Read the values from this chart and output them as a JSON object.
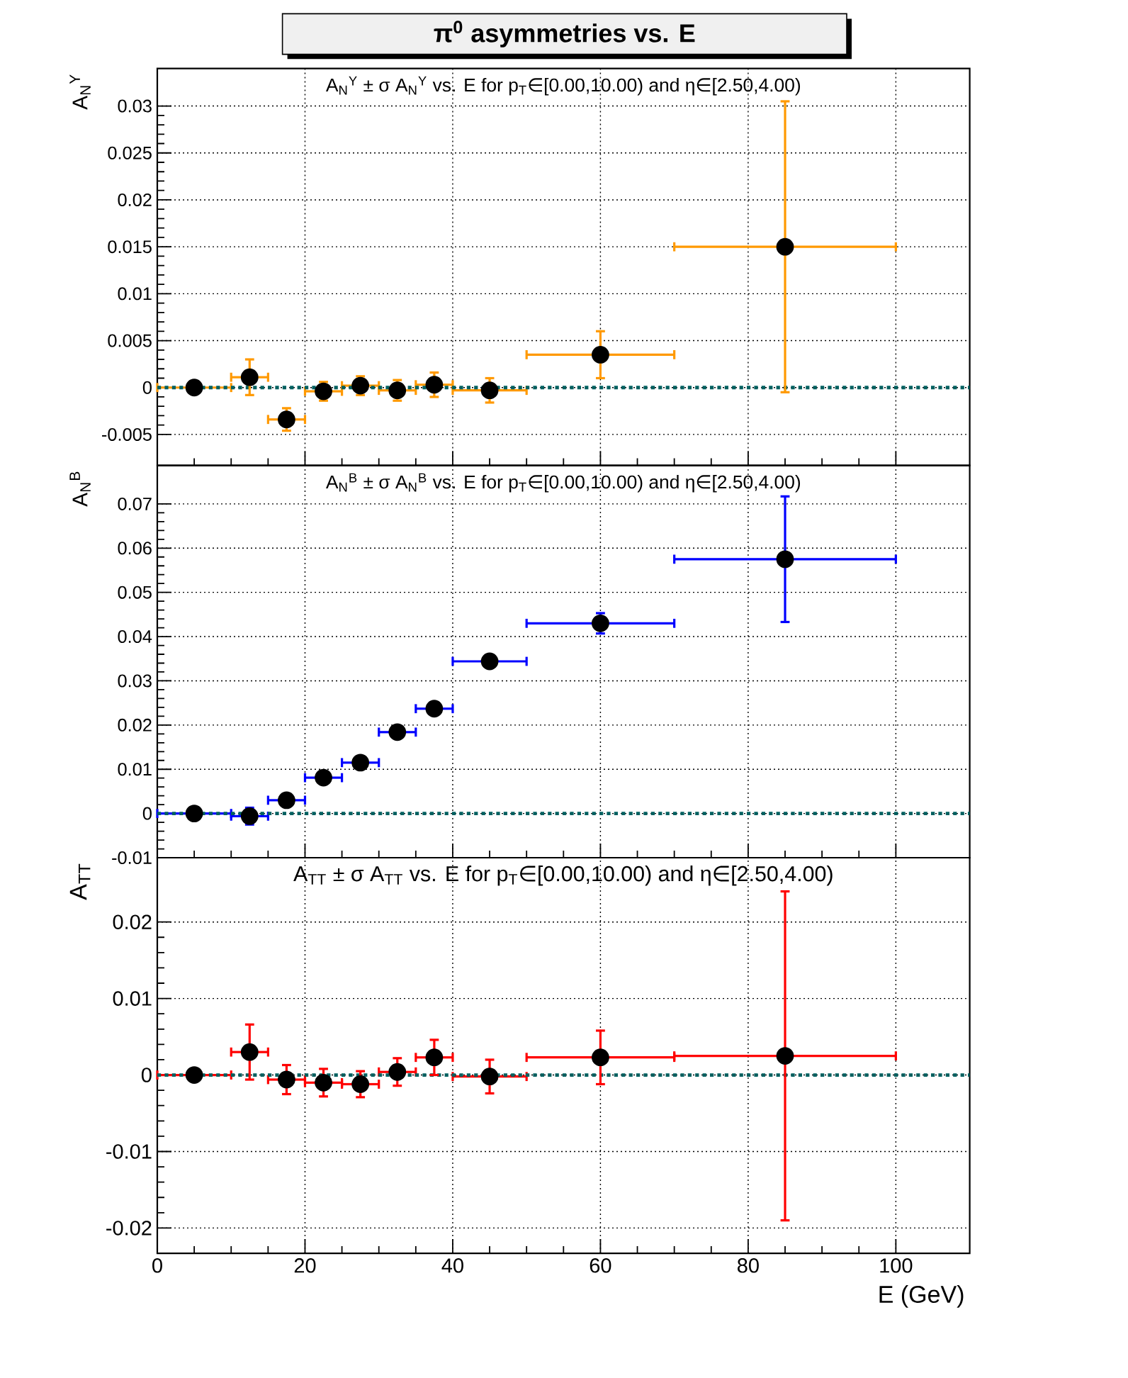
{
  "chart_data": [
    {
      "type": "scatter",
      "title": "π$^{0}$ asymmetries vs. E",
      "subtitle": "A$_{N}$$^{Y}$ ± σ A$_{N}$$^{Y}$ vs. E for p$_{T}$∈[0.00,10.00) and η∈[2.50,4.00)",
      "ylabel": "A$_{N}$$^{Y}$",
      "x": [
        5,
        12.5,
        17.5,
        22.5,
        27.5,
        32.5,
        37.5,
        45,
        60,
        85
      ],
      "series": [
        {
          "color": "#000000",
          "values": [
            0,
            0.0011,
            -0.0034,
            -0.0004,
            0.0002,
            -0.0003,
            0.0003,
            -0.0003,
            0.0035,
            0.015
          ],
          "errors": [
            null,
            0.0019,
            0.0012,
            0.001,
            0.001,
            0.0011,
            0.0013,
            0.0013,
            0.0025,
            0.0155
          ],
          "xerrors": [
            5,
            2.5,
            2.5,
            2.5,
            2.5,
            2.5,
            2.5,
            5,
            10,
            15
          ]
        }
      ],
      "xlim": [
        0,
        110
      ],
      "xticks": [
        0,
        20,
        40,
        60,
        80,
        100
      ],
      "ylim": [
        -0.0083,
        0.034
      ],
      "yticks": [
        -0.005,
        0,
        0.005,
        0.01,
        0.015,
        0.02,
        0.025,
        0.03
      ],
      "grid": true,
      "marker": "circle",
      "tick_labels": "y",
      "ref_lines": [
        {
          "axis": "y",
          "value": 0,
          "color": "#006060",
          "line_style": "dotted"
        }
      ]
    },
    {
      "type": "scatter",
      "subtitle": "A$_{N}$$^{B}$ ± σ A$_{N}$$^{B}$ vs. E for p$_{T}$∈[0.00,10.00) and η∈[2.50,4.00)",
      "ylabel": "A$_{N}$$^{B}$",
      "x": [
        5,
        12.5,
        17.5,
        22.5,
        27.5,
        32.5,
        37.5,
        45,
        60,
        85
      ],
      "series": [
        {
          "color": "#000000",
          "values": [
            0,
            -0.0006,
            0.003,
            0.0081,
            0.0115,
            0.0184,
            0.0237,
            0.0344,
            0.043,
            0.0575
          ],
          "errors": [
            null,
            0.0019,
            null,
            null,
            null,
            null,
            null,
            null,
            0.0023,
            0.0142
          ],
          "xerrors": [
            5,
            2.5,
            2.5,
            2.5,
            2.5,
            2.5,
            2.5,
            5,
            10,
            15
          ]
        }
      ],
      "xlim": [
        0,
        110
      ],
      "xticks": [
        0,
        20,
        40,
        60,
        80,
        100
      ],
      "ylim": [
        -0.01,
        0.0787
      ],
      "yticks": [
        -0.01,
        0,
        0.01,
        0.02,
        0.03,
        0.04,
        0.05,
        0.06,
        0.07
      ],
      "grid": true,
      "marker": "circle",
      "tick_labels": "y",
      "ref_lines": [
        {
          "axis": "y",
          "value": 0,
          "color": "#006060",
          "line_style": "dotted"
        }
      ]
    },
    {
      "type": "scatter",
      "subtitle": "A$_{TT}$ ± σ A$_{TT}$ vs. E for p$_{T}$∈[0.00,10.00) and η∈[2.50,4.00)",
      "ylabel": "A$_{TT}$",
      "xlabel": "E (GeV)",
      "x": [
        5,
        12.5,
        17.5,
        22.5,
        27.5,
        32.5,
        37.5,
        45,
        60,
        85
      ],
      "series": [
        {
          "color": "#000000",
          "values": [
            0,
            0.003,
            -0.0006,
            -0.001,
            -0.0012,
            0.0004,
            0.0023,
            -0.0002,
            0.0023,
            0.0025
          ],
          "errors": [
            null,
            0.0036,
            0.0019,
            0.0018,
            0.0017,
            0.0018,
            0.0023,
            0.0022,
            0.0035,
            0.0215
          ],
          "xerrors": [
            5,
            2.5,
            2.5,
            2.5,
            2.5,
            2.5,
            2.5,
            5,
            10,
            15
          ]
        }
      ],
      "xlim": [
        0,
        110
      ],
      "xticks": [
        0,
        20,
        40,
        60,
        80,
        100
      ],
      "ylim": [
        -0.0233,
        0.0284
      ],
      "yticks": [
        -0.02,
        -0.01,
        0,
        0.01,
        0.02
      ],
      "grid": true,
      "marker": "circle",
      "ref_lines": [
        {
          "axis": "y",
          "value": 0,
          "color": "#006060",
          "line_style": "dotted"
        }
      ]
    }
  ]
}
